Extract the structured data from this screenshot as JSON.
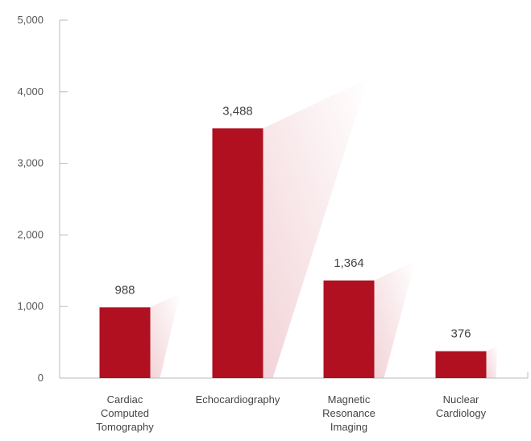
{
  "chart_data": {
    "type": "bar",
    "categories": [
      [
        "Cardiac",
        "Computed",
        "Tomography"
      ],
      [
        "Echocardiography"
      ],
      [
        "Magnetic",
        "Resonance",
        "Imaging"
      ],
      [
        "Nuclear",
        "Cardiology"
      ]
    ],
    "values": [
      988,
      3488,
      1364,
      376
    ],
    "data_labels": [
      "988",
      "3,488",
      "1,364",
      "376"
    ],
    "yticks": [
      0,
      1000,
      2000,
      3000,
      4000,
      5000
    ],
    "ytick_labels": [
      "0",
      "1,000",
      "2,000",
      "3,000",
      "4,000",
      "5,000"
    ],
    "ylim": [
      0,
      5000
    ],
    "title": "",
    "xlabel": "",
    "ylabel": "",
    "grid": false,
    "legend": "none",
    "colors": {
      "bar": "#b01020",
      "axis": "#bbbbbb",
      "shadow": "#e8b0b8"
    }
  }
}
